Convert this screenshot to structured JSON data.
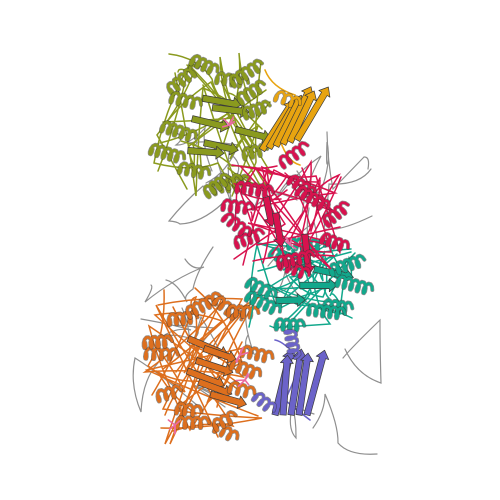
{
  "image": {
    "background": "#ffffff",
    "subject": "protein-ribbon-structure",
    "style": "cartoon-ribbon",
    "chains": [
      {
        "id": "olive",
        "color": "#8a9a1e"
      },
      {
        "id": "gold",
        "color": "#e8a410"
      },
      {
        "id": "crimson",
        "color": "#d8124e"
      },
      {
        "id": "teal",
        "color": "#12a88c"
      },
      {
        "id": "orange",
        "color": "#dd6f1e"
      },
      {
        "id": "slate-blue",
        "color": "#6b63c9"
      },
      {
        "id": "coil-gray",
        "color": "#8f8f8f"
      },
      {
        "id": "ligand-pink",
        "color": "#ea6aa0"
      }
    ]
  }
}
